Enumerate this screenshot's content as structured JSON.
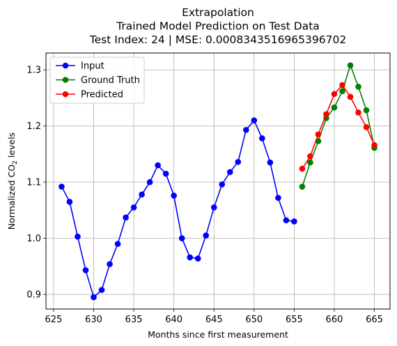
{
  "chart_data": {
    "type": "line",
    "title_lines": [
      "Extrapolation",
      "Trained Model Prediction on Test Data",
      "Test Index: 24 | MSE: 0.0008343516965396702"
    ],
    "xlabel": "Months since first measurement",
    "ylabel_main": "Normalized CO",
    "ylabel_sub": "2",
    "ylabel_tail": " levels",
    "xlim": [
      624.05,
      666.95
    ],
    "ylim": [
      0.874,
      1.33
    ],
    "xticks": [
      625,
      630,
      635,
      640,
      645,
      650,
      655,
      660,
      665
    ],
    "yticks": [
      0.9,
      1.0,
      1.1,
      1.2,
      1.3
    ],
    "ytick_labels": [
      "0.9",
      "1.0",
      "1.1",
      "1.2",
      "1.3"
    ],
    "grid": true,
    "legend_position": "upper-left",
    "series": [
      {
        "name": "Input",
        "color": "#0000ff",
        "x": [
          626,
          627,
          628,
          629,
          630,
          631,
          632,
          633,
          634,
          635,
          636,
          637,
          638,
          639,
          640,
          641,
          642,
          643,
          644,
          645,
          646,
          647,
          648,
          649,
          650,
          651,
          652,
          653,
          654,
          655
        ],
        "y": [
          1.092,
          1.065,
          1.003,
          0.943,
          0.895,
          0.908,
          0.954,
          0.99,
          1.037,
          1.055,
          1.078,
          1.1,
          1.13,
          1.115,
          1.076,
          1.0,
          0.966,
          0.964,
          1.005,
          1.055,
          1.096,
          1.118,
          1.136,
          1.193,
          1.21,
          1.178,
          1.135,
          1.072,
          1.032,
          1.03
        ]
      },
      {
        "name": "Ground Truth",
        "color": "#008000",
        "x": [
          656,
          657,
          658,
          659,
          660,
          661,
          662,
          663,
          664,
          665
        ],
        "y": [
          1.092,
          1.135,
          1.173,
          1.214,
          1.233,
          1.262,
          1.308,
          1.27,
          1.228,
          1.161
        ]
      },
      {
        "name": "Predicted",
        "color": "#ff0000",
        "x": [
          656,
          657,
          658,
          659,
          660,
          661,
          662,
          663,
          664,
          665
        ],
        "y": [
          1.124,
          1.146,
          1.185,
          1.221,
          1.257,
          1.273,
          1.252,
          1.224,
          1.198,
          1.166
        ]
      }
    ]
  }
}
